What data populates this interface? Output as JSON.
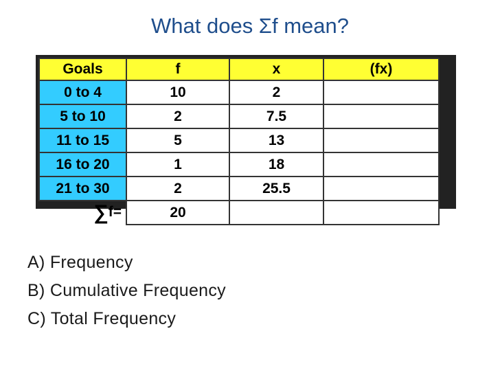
{
  "title": "What does Σf mean?",
  "table": {
    "headers": [
      "Goals",
      "f",
      "x",
      "(fx)"
    ],
    "rows": [
      {
        "goals": "0 to 4",
        "f": "10",
        "x": "2",
        "fx": ""
      },
      {
        "goals": "5 to 10",
        "f": "2",
        "x": "7.5",
        "fx": ""
      },
      {
        "goals": "11 to 15",
        "f": "5",
        "x": "13",
        "fx": ""
      },
      {
        "goals": "16 to 20",
        "f": "1",
        "x": "18",
        "fx": ""
      },
      {
        "goals": "21 to 30",
        "f": "2",
        "x": "25.5",
        "fx": ""
      }
    ],
    "sum_symbol": "∑",
    "sum_label": "f=",
    "sum_value": "20"
  },
  "options": [
    "A) Frequency",
    "B) Cumulative Frequency",
    "C) Total Frequency"
  ],
  "colors": {
    "title": "#1f4e8c",
    "header_bg": "#ffff33",
    "goals_bg": "#33ccff"
  }
}
